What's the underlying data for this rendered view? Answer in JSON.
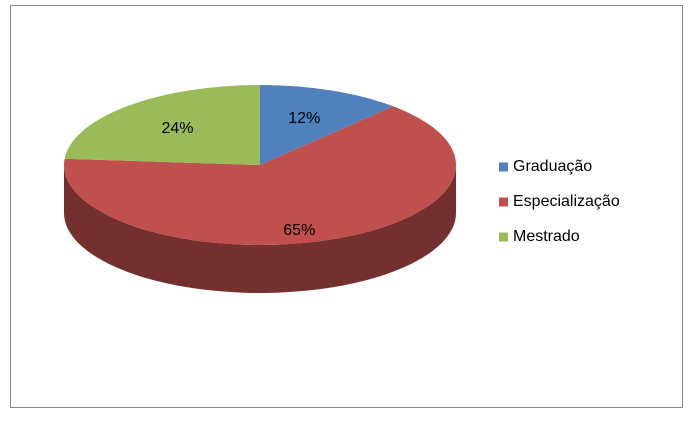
{
  "chart_data": {
    "type": "pie",
    "categories": [
      "Graduação",
      "Especialização",
      "Mestrado"
    ],
    "values": [
      12,
      65,
      24
    ],
    "value_labels": [
      "12%",
      "65%",
      "24%"
    ],
    "colors": [
      "#4f81bd",
      "#c0504d",
      "#9bbb59"
    ],
    "legend": "right",
    "three_d": true
  }
}
